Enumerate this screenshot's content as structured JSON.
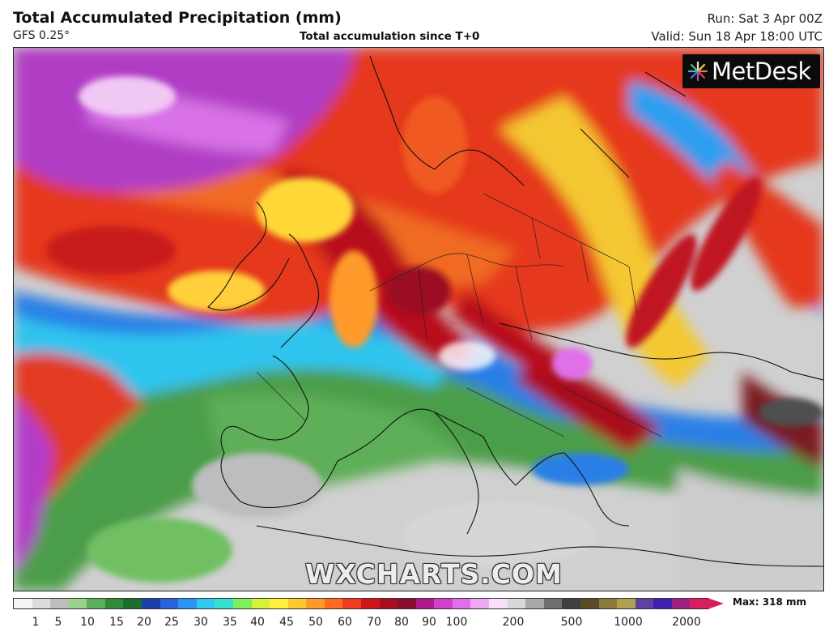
{
  "header": {
    "title": "Total Accumulated Precipitation (mm)",
    "model": "GFS 0.25°",
    "subtitle": "Total accumulation since T+0",
    "run": "Run: Sat 3 Apr 00Z",
    "valid": "Valid: Sun 18 Apr 18:00 UTC"
  },
  "branding": {
    "logo_text": "MetDesk",
    "watermark": "WXCHARTS.COM"
  },
  "legend": {
    "max_label": "Max: 318 mm",
    "tick_labels": [
      "1",
      "5",
      "10",
      "15",
      "20",
      "25",
      "30",
      "35",
      "40",
      "45",
      "50",
      "60",
      "70",
      "80",
      "90",
      "100",
      "200",
      "500",
      "1000",
      "2000"
    ],
    "colors": [
      "#f4f4f4",
      "#dcdcdc",
      "#bdbdbd",
      "#9ad28c",
      "#5cb05a",
      "#2f8a3a",
      "#1c6e2c",
      "#1d3fa8",
      "#2a63e0",
      "#2c93f0",
      "#2fc8f0",
      "#33e0d0",
      "#7ef05a",
      "#d8f03a",
      "#fff03c",
      "#ffc830",
      "#ff9a2a",
      "#ff6a20",
      "#f23a1e",
      "#d0161a",
      "#a80e1e",
      "#8a0c2e",
      "#b01a8c",
      "#d040c8",
      "#e070e8",
      "#f0a8f4",
      "#f8e0f8",
      "#d8d8d8",
      "#a8a8a8",
      "#707070",
      "#404040",
      "#5a4a2a",
      "#8a7a3a",
      "#b0a050",
      "#6040a0",
      "#4020b0",
      "#a02080",
      "#d81e5c"
    ]
  },
  "map": {
    "region": "Europe and North Africa",
    "projection": "polar stereographic-like view",
    "precipitation_colors": {
      "dry": "#d2d2d2",
      "light": "#4fa04a",
      "moderate": "#2a6fe0",
      "heavy": "#e8341e",
      "very_heavy": "#a0122a",
      "extreme": "#b43cc8"
    }
  }
}
